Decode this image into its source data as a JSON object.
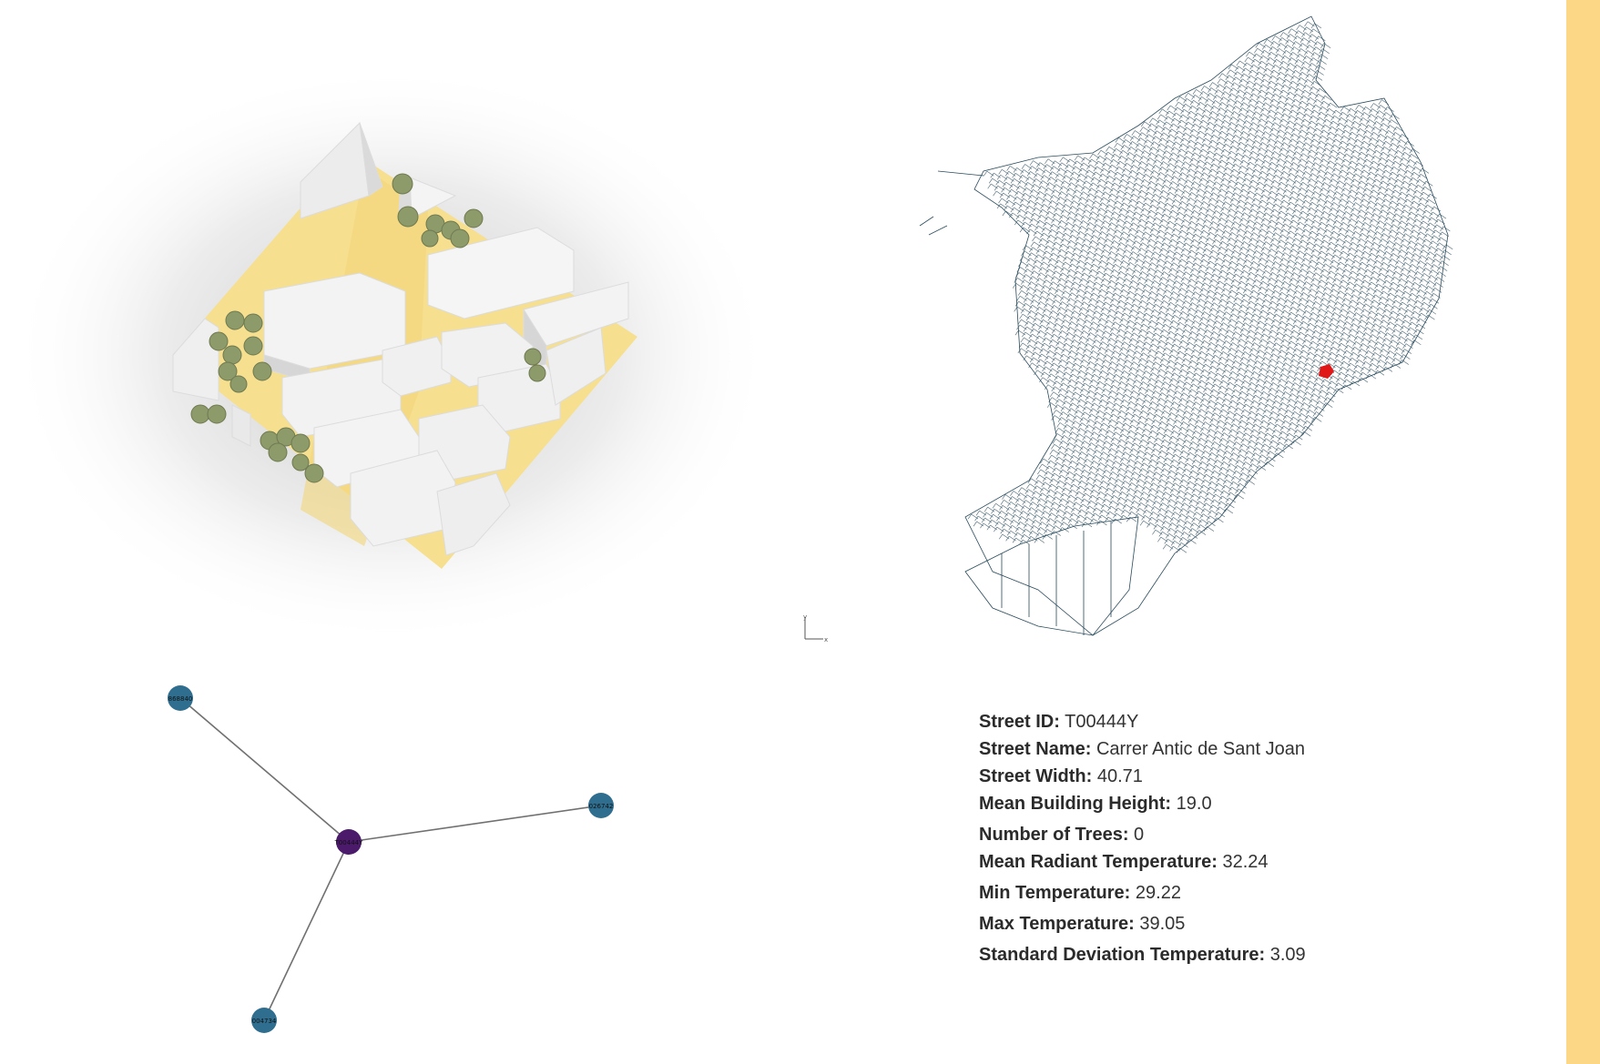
{
  "colors": {
    "ground": "#f6df8f",
    "building": "#f2f2f2",
    "tree": "#8d9a6a",
    "street_lines": "#274a5c",
    "highlight": "#e01818",
    "node_neighbor": "#2f6e8e",
    "node_center": "#4b1a6b",
    "edge": "#707070",
    "accent_strip": "#fbd786"
  },
  "axes_indicator": {
    "y": "y",
    "x": "x"
  },
  "graph": {
    "nodes": [
      {
        "id": "center",
        "label": "T00444Y",
        "role": "center"
      },
      {
        "id": "n1",
        "label": "868840",
        "role": "neighbor"
      },
      {
        "id": "n2",
        "label": "026742",
        "role": "neighbor"
      },
      {
        "id": "n3",
        "label": "004734",
        "role": "neighbor"
      }
    ],
    "edges": [
      [
        "center",
        "n1"
      ],
      [
        "center",
        "n2"
      ],
      [
        "center",
        "n3"
      ]
    ]
  },
  "info": {
    "rows": [
      {
        "label": "Street ID:",
        "value": "T00444Y"
      },
      {
        "label": "Street Name:",
        "value": "Carrer Antic de Sant Joan"
      },
      {
        "label": "Street Width:",
        "value": "40.71"
      },
      {
        "label": "Mean Building Height:",
        "value": "19.0"
      },
      {
        "label": "Number of Trees:",
        "value": "0"
      },
      {
        "label": "Mean Radiant Temperature:",
        "value": "32.24"
      },
      {
        "label": "Min Temperature:",
        "value": "29.22"
      },
      {
        "label": "Max Temperature:",
        "value": "39.05"
      },
      {
        "label": "Standard Deviation Temperature:",
        "value": "3.09"
      }
    ]
  }
}
